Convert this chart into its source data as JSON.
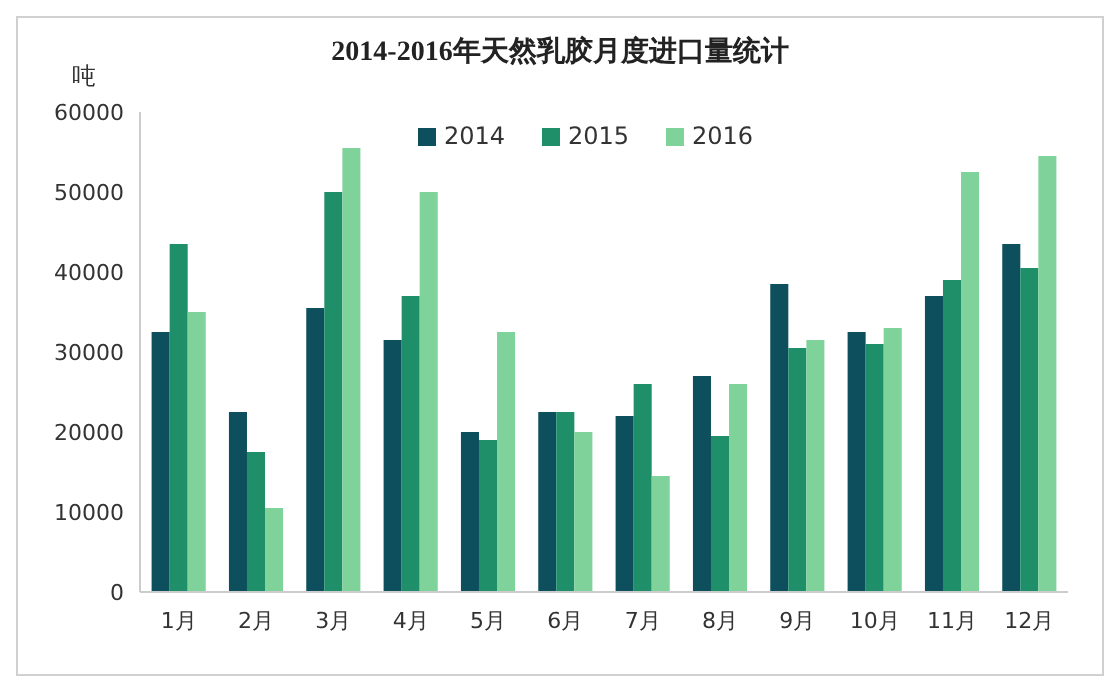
{
  "chart_data": {
    "type": "bar",
    "title": "2014-2016年天然乳胶月度进口量统计",
    "ylabel": "吨",
    "categories": [
      "1月",
      "2月",
      "3月",
      "4月",
      "5月",
      "6月",
      "7月",
      "8月",
      "9月",
      "10月",
      "11月",
      "12月"
    ],
    "series": [
      {
        "name": "2014",
        "color": "#0d4f5c",
        "values": [
          32500,
          22500,
          35500,
          31500,
          20000,
          22500,
          22000,
          27000,
          38500,
          32500,
          37000,
          43500
        ]
      },
      {
        "name": "2015",
        "color": "#1f8f6a",
        "values": [
          43500,
          17500,
          50000,
          37000,
          19000,
          22500,
          26000,
          19500,
          30500,
          31000,
          39000,
          40500
        ]
      },
      {
        "name": "2016",
        "color": "#7fd39a",
        "values": [
          35000,
          10500,
          55500,
          50000,
          32500,
          20000,
          14500,
          26000,
          31500,
          33000,
          52500,
          54500
        ]
      }
    ],
    "ylim": [
      0,
      60000
    ],
    "yticks": [
      0,
      10000,
      20000,
      30000,
      40000,
      50000,
      60000
    ],
    "grid": false,
    "legend": "top"
  }
}
